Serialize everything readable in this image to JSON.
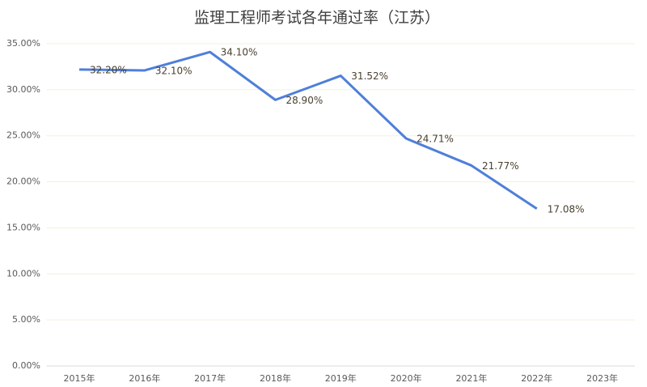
{
  "chart_data": {
    "type": "line",
    "title": "监理工程师考试各年通过率（江苏）",
    "categories": [
      "2015年",
      "2016年",
      "2017年",
      "2018年",
      "2019年",
      "2020年",
      "2021年",
      "2022年",
      "2023年"
    ],
    "series": [
      {
        "name": "通过率",
        "color": "#4f7fd9",
        "values": [
          32.2,
          32.1,
          34.1,
          28.9,
          31.52,
          24.71,
          21.77,
          17.08,
          null
        ],
        "value_labels": [
          "32.20%",
          "32.10%",
          "34.10%",
          "28.90%",
          "31.52%",
          "24.71%",
          "21.77%",
          "17.08%",
          null
        ]
      }
    ],
    "ylim": [
      0,
      35
    ],
    "yticks": [
      {
        "value": 0,
        "label": "0.00%"
      },
      {
        "value": 5,
        "label": "5.00%"
      },
      {
        "value": 10,
        "label": "10.00%"
      },
      {
        "value": 15,
        "label": "15.00%"
      },
      {
        "value": 20,
        "label": "20.00%"
      },
      {
        "value": 25,
        "label": "25.00%"
      },
      {
        "value": 30,
        "label": "30.00%"
      },
      {
        "value": 35,
        "label": "35.00%"
      }
    ],
    "grid": true
  }
}
